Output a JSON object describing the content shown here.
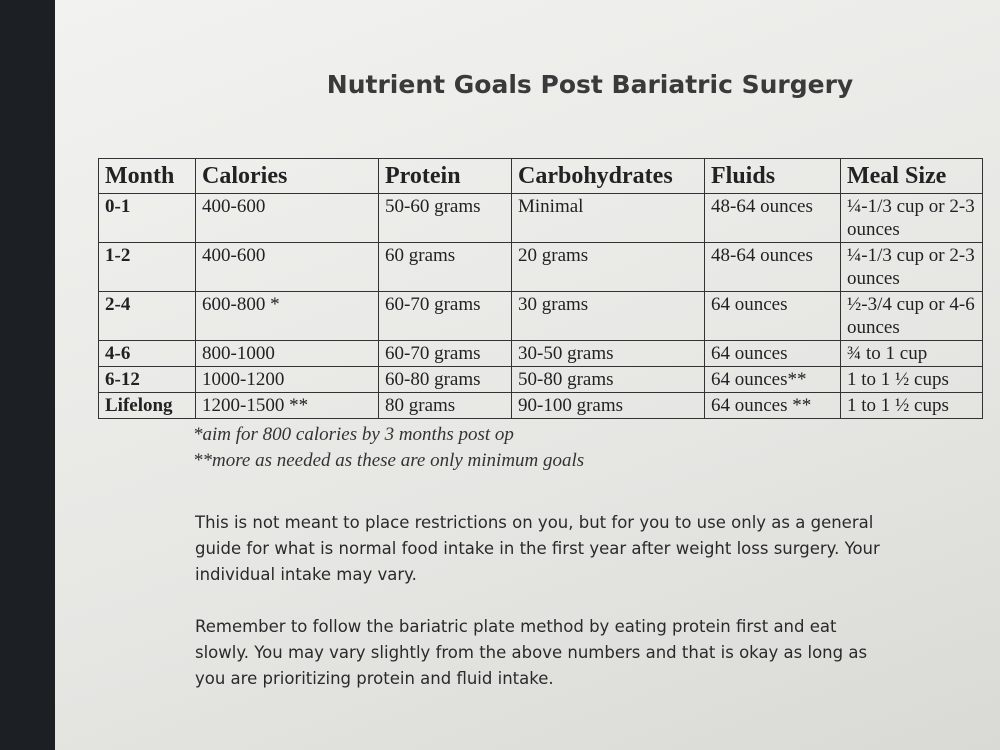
{
  "title": "Nutrient Goals Post Bariatric Surgery",
  "table": {
    "header": [
      "Month",
      "Calories",
      "Protein",
      "Carbohydrates",
      "Fluids",
      "Meal Size"
    ],
    "rows": [
      [
        "0-1",
        "400-600",
        "50-60 grams",
        "Minimal",
        "48-64 ounces",
        "¼-1/3 cup or 2-3 ounces"
      ],
      [
        "1-2",
        "400-600",
        "60 grams",
        "20 grams",
        "48-64 ounces",
        "¼-1/3 cup or 2-3 ounces"
      ],
      [
        "2-4",
        "600-800 *",
        "60-70 grams",
        "30 grams",
        "64 ounces",
        "½-3/4 cup or 4-6 ounces"
      ],
      [
        "4-6",
        "800-1000",
        "60-70 grams",
        "30-50 grams",
        "64 ounces",
        "¾ to 1 cup"
      ],
      [
        "6-12",
        "1000-1200",
        "60-80 grams",
        "50-80 grams",
        "64 ounces**",
        "1 to 1 ½ cups"
      ],
      [
        "Lifelong",
        "1200-1500 **",
        "80 grams",
        "90-100 grams",
        "64 ounces **",
        "1 to 1 ½ cups"
      ]
    ]
  },
  "notes": [
    "*aim for 800 calories by 3 months post op",
    "**more as needed as these are only minimum goals"
  ],
  "paragraphs": [
    "This is not meant to place restrictions on you, but for you to use only as a general guide for what is normal food intake in the first year after weight loss surgery. Your individual intake may vary.",
    "Remember to follow the bariatric plate method by eating protein first and eat slowly. You may vary slightly from the above numbers and that is okay as long as you are prioritizing protein and fluid intake."
  ]
}
